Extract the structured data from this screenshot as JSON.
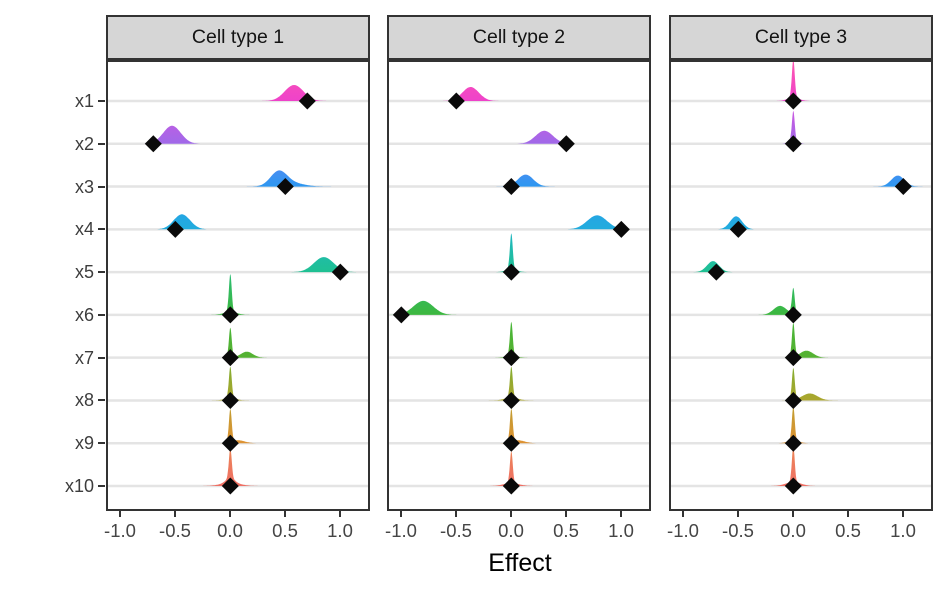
{
  "figure": {
    "x_axis_title": "Effect"
  },
  "chart_data": {
    "type": "area",
    "variant": "faceted density ridgeline plot with black diamond point estimates (posterior distributions per variable per facet)",
    "facets": [
      "Cell type 1",
      "Cell type 2",
      "Cell type 3"
    ],
    "categories": [
      "x1",
      "x2",
      "x3",
      "x4",
      "x5",
      "x6",
      "x7",
      "x8",
      "x9",
      "x10"
    ],
    "xlabel": "Effect",
    "x_ticks": [
      -1.0,
      -0.5,
      0.0,
      0.5,
      1.0
    ],
    "x_tick_labels": [
      "-1.0",
      "-0.5",
      "0.0",
      "0.5",
      "1.0"
    ],
    "xlim": [
      -1.13,
      1.27
    ],
    "grid": "horizontal gridlines only, light gray, white panel background, dark panel border",
    "legend": "none",
    "marker": {
      "shape": "diamond",
      "color": "#0a0a0a",
      "meaning": "point estimate (effect)"
    },
    "density_encoding": "components = [peak_center_x_data_units, sigma_data_units, peak_height_px]; ridge = sum of gaussian components rising from row baseline",
    "row_colors": [
      "#EE3BC8",
      "#9C63E8",
      "#2493F0",
      "#18A9DC",
      "#16BE8E",
      "#35B437",
      "#4FAF2A",
      "#A9A326",
      "#DD8E2B",
      "#EF6B60"
    ],
    "row_top_colors": [
      "#FF52A8",
      "#DA4BDC",
      "#7377F2",
      "#2493F0",
      "#17B2C8",
      "#1FBB74",
      "#3CB331",
      "#6EAC28",
      "#B59C27",
      "#E9824A"
    ],
    "gridline_color": "#E4E4E4",
    "border_color": "#333333",
    "strip_bg": "#D6D6D6",
    "panels": [
      {
        "facet": "Cell type 1",
        "rows": [
          {
            "var": "x1",
            "effect": 0.7,
            "density": [
              [
                0.58,
                0.085,
                16
              ]
            ]
          },
          {
            "var": "x2",
            "effect": -0.7,
            "density": [
              [
                -0.53,
                0.08,
                18
              ]
            ]
          },
          {
            "var": "x3",
            "effect": 0.5,
            "density": [
              [
                0.44,
                0.075,
                15
              ],
              [
                0.58,
                0.1,
                3
              ]
            ]
          },
          {
            "var": "x4",
            "effect": -0.5,
            "density": [
              [
                -0.44,
                0.075,
                15
              ]
            ]
          },
          {
            "var": "x5",
            "effect": 1.0,
            "density": [
              [
                0.85,
                0.09,
                15
              ]
            ]
          },
          {
            "var": "x6",
            "effect": 0.0,
            "density": [
              [
                0,
                0.013,
                38
              ],
              [
                0,
                0.06,
                3
              ]
            ]
          },
          {
            "var": "x7",
            "effect": 0.0,
            "density": [
              [
                0,
                0.013,
                30
              ],
              [
                0.15,
                0.055,
                6
              ]
            ]
          },
          {
            "var": "x8",
            "effect": 0.0,
            "density": [
              [
                0,
                0.013,
                31
              ],
              [
                0,
                0.05,
                3
              ]
            ]
          },
          {
            "var": "x9",
            "effect": 0.0,
            "density": [
              [
                0,
                0.013,
                33
              ],
              [
                0.07,
                0.06,
                3
              ]
            ]
          },
          {
            "var": "x10",
            "effect": 0.0,
            "density": [
              [
                0,
                0.013,
                30
              ],
              [
                0,
                0.04,
                5
              ],
              [
                0,
                0.09,
                3
              ]
            ]
          }
        ]
      },
      {
        "facet": "Cell type 2",
        "rows": [
          {
            "var": "x1",
            "effect": -0.5,
            "density": [
              [
                -0.37,
                0.075,
                14
              ]
            ]
          },
          {
            "var": "x2",
            "effect": 0.5,
            "density": [
              [
                0.3,
                0.08,
                13
              ]
            ]
          },
          {
            "var": "x3",
            "effect": 0.0,
            "density": [
              [
                0.13,
                0.07,
                12
              ]
            ]
          },
          {
            "var": "x4",
            "effect": 1.0,
            "density": [
              [
                0.78,
                0.09,
                14
              ]
            ]
          },
          {
            "var": "x5",
            "effect": 0.0,
            "density": [
              [
                0,
                0.013,
                36
              ],
              [
                0,
                0.05,
                3
              ]
            ]
          },
          {
            "var": "x6",
            "effect": -1.0,
            "density": [
              [
                -0.8,
                0.09,
                14
              ]
            ]
          },
          {
            "var": "x7",
            "effect": 0.0,
            "density": [
              [
                0,
                0.013,
                34
              ],
              [
                0,
                0.05,
                2
              ]
            ]
          },
          {
            "var": "x8",
            "effect": 0.0,
            "density": [
              [
                0,
                0.013,
                31
              ],
              [
                0,
                0.06,
                3
              ]
            ]
          },
          {
            "var": "x9",
            "effect": 0.0,
            "density": [
              [
                0,
                0.013,
                33
              ],
              [
                0.06,
                0.06,
                3
              ]
            ]
          },
          {
            "var": "x10",
            "effect": 0.0,
            "density": [
              [
                0,
                0.013,
                32
              ],
              [
                0,
                0.07,
                3
              ]
            ]
          }
        ]
      },
      {
        "facet": "Cell type 3",
        "rows": [
          {
            "var": "x1",
            "effect": 0.0,
            "density": [
              [
                0,
                0.013,
                38
              ],
              [
                0,
                0.05,
                4
              ]
            ]
          },
          {
            "var": "x2",
            "effect": 0.0,
            "density": [
              [
                0,
                0.013,
                30
              ],
              [
                0,
                0.04,
                3
              ]
            ]
          },
          {
            "var": "x3",
            "effect": 1.0,
            "density": [
              [
                0.95,
                0.06,
                11
              ]
            ]
          },
          {
            "var": "x4",
            "effect": -0.5,
            "density": [
              [
                -0.52,
                0.055,
                13
              ]
            ]
          },
          {
            "var": "x5",
            "effect": -0.7,
            "density": [
              [
                -0.73,
                0.055,
                11
              ]
            ]
          },
          {
            "var": "x6",
            "effect": 0.0,
            "density": [
              [
                0,
                0.013,
                26
              ],
              [
                -0.12,
                0.06,
                9
              ]
            ]
          },
          {
            "var": "x7",
            "effect": 0.0,
            "density": [
              [
                0,
                0.013,
                34
              ],
              [
                0.12,
                0.06,
                7
              ]
            ]
          },
          {
            "var": "x8",
            "effect": 0.0,
            "density": [
              [
                0,
                0.013,
                32
              ],
              [
                0.15,
                0.07,
                7
              ]
            ]
          },
          {
            "var": "x9",
            "effect": 0.0,
            "density": [
              [
                0,
                0.013,
                34
              ],
              [
                0,
                0.05,
                3
              ]
            ]
          },
          {
            "var": "x10",
            "effect": 0.0,
            "density": [
              [
                0,
                0.013,
                36
              ],
              [
                0,
                0.07,
                4
              ]
            ]
          }
        ]
      }
    ]
  }
}
